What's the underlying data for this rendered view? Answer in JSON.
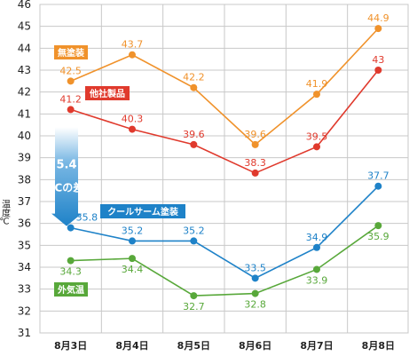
{
  "chart_data": {
    "type": "line",
    "categories": [
      "8月3日",
      "8月4日",
      "8月5日",
      "8月6日",
      "8月7日",
      "8月8日"
    ],
    "ylabel": "温度℃",
    "ylim": [
      31,
      46
    ],
    "yticks": [
      31,
      32,
      33,
      34,
      35,
      36,
      37,
      38,
      39,
      40,
      41,
      42,
      43,
      44,
      45,
      46
    ],
    "grid": true,
    "series": [
      {
        "name": "無塗装",
        "color": "#f0922b",
        "values": [
          42.5,
          43.7,
          42.2,
          39.6,
          41.9,
          44.9
        ],
        "labels": [
          "42.5",
          "43.7",
          "42.2",
          "39.6",
          "41.9",
          "44.9"
        ]
      },
      {
        "name": "他社製品",
        "color": "#e03a2d",
        "values": [
          41.2,
          40.3,
          39.6,
          38.3,
          39.5,
          43.0
        ],
        "labels": [
          "41.2",
          "40.3",
          "39.6",
          "38.3",
          "39.5",
          "43"
        ]
      },
      {
        "name": "クールサーム塗装",
        "color": "#1e82c8",
        "values": [
          35.8,
          35.2,
          35.2,
          33.5,
          34.9,
          37.7
        ],
        "labels": [
          "35.8",
          "35.2",
          "35.2",
          "33.5",
          "34.9",
          "37.7"
        ]
      },
      {
        "name": "外気温",
        "color": "#58a83a",
        "values": [
          34.3,
          34.4,
          32.7,
          32.8,
          33.9,
          35.9
        ],
        "labels": [
          "34.3",
          "34.4",
          "32.7",
          "32.8",
          "33.9",
          "35.9"
        ]
      }
    ],
    "annotation": {
      "value": "5.4",
      "text": "℃の差",
      "color": "#1e82c8"
    }
  }
}
